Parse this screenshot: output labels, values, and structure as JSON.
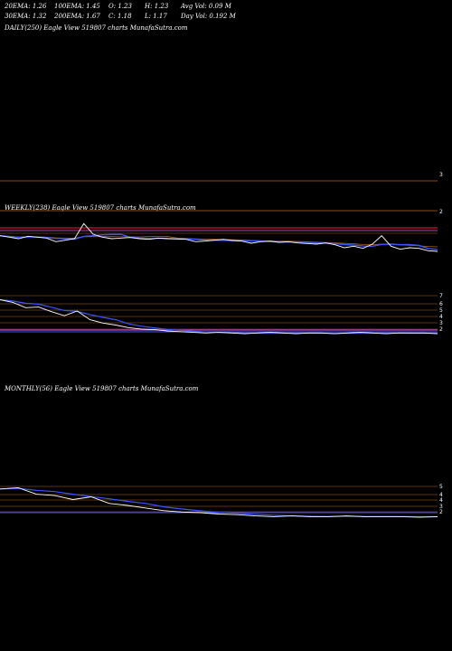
{
  "header": {
    "row1": [
      "20EMA: 1.26",
      "100EMA: 1.45",
      "O: 1.23",
      "H: 1.23",
      "Avg Vol: 0.09 M"
    ],
    "row2": [
      "30EMA: 1.32",
      "200EMA: 1.67",
      "C: 1.18",
      "L: 1.17",
      "Day Vol: 0.192 M"
    ]
  },
  "colors": {
    "background": "#000000",
    "price": "#ffffff",
    "ema_blue": "#3a55ff",
    "level_line": "#b5651d",
    "band_purple": "#c040c0",
    "band_red": "#d01030"
  },
  "chart_data": [
    {
      "type": "line",
      "title": "DAILY(250) Eagle View 519807 charts MunafaSutra.com",
      "y_ticks": [
        "3"
      ],
      "series": []
    },
    {
      "type": "line",
      "title": "WEEKLY(238) Eagle View 519807 charts MunafaSutra.com",
      "y_ticks": [
        "2"
      ],
      "price": [
        1.9,
        1.85,
        1.8,
        1.88,
        1.85,
        1.82,
        1.7,
        1.75,
        1.8,
        2.3,
        1.95,
        1.85,
        1.8,
        1.82,
        1.84,
        1.8,
        1.78,
        1.82,
        1.8,
        1.79,
        1.78,
        1.7,
        1.72,
        1.75,
        1.78,
        1.74,
        1.72,
        1.65,
        1.7,
        1.72,
        1.68,
        1.7,
        1.66,
        1.64,
        1.62,
        1.66,
        1.6,
        1.5,
        1.55,
        1.48,
        1.62,
        1.9,
        1.55,
        1.45,
        1.5,
        1.48,
        1.4,
        1.38
      ]
    },
    {
      "type": "line",
      "title": "",
      "y_ticks": [
        "7",
        "6",
        "5",
        "4",
        "3",
        "2"
      ],
      "price": [
        7,
        6.6,
        5.8,
        5.9,
        5.2,
        4.6,
        5.3,
        4.0,
        3.5,
        3.2,
        2.8,
        2.6,
        2.5,
        2.3,
        2.2,
        2.1,
        2.0,
        2.1,
        2.0,
        1.9,
        2.0,
        2.1,
        2.0,
        1.9,
        2.0,
        2.0,
        1.9,
        2.0,
        2.1,
        2.0,
        1.9,
        2.0,
        2.0,
        2.0,
        1.9
      ]
    },
    {
      "type": "line",
      "title": "MONTHLY(56) Eagle View 519807 charts MunafaSutra.com",
      "y_ticks": [
        "5",
        "4",
        "4",
        "3",
        "2"
      ],
      "price": [
        6.2,
        6.4,
        5.4,
        5.2,
        4.6,
        5.0,
        4.0,
        3.7,
        3.3,
        2.9,
        2.7,
        2.6,
        2.4,
        2.3,
        2.1,
        2.0,
        2.1,
        2.0,
        2.0,
        2.1,
        2.0,
        2.0,
        2.0,
        1.9,
        2.0
      ]
    }
  ]
}
